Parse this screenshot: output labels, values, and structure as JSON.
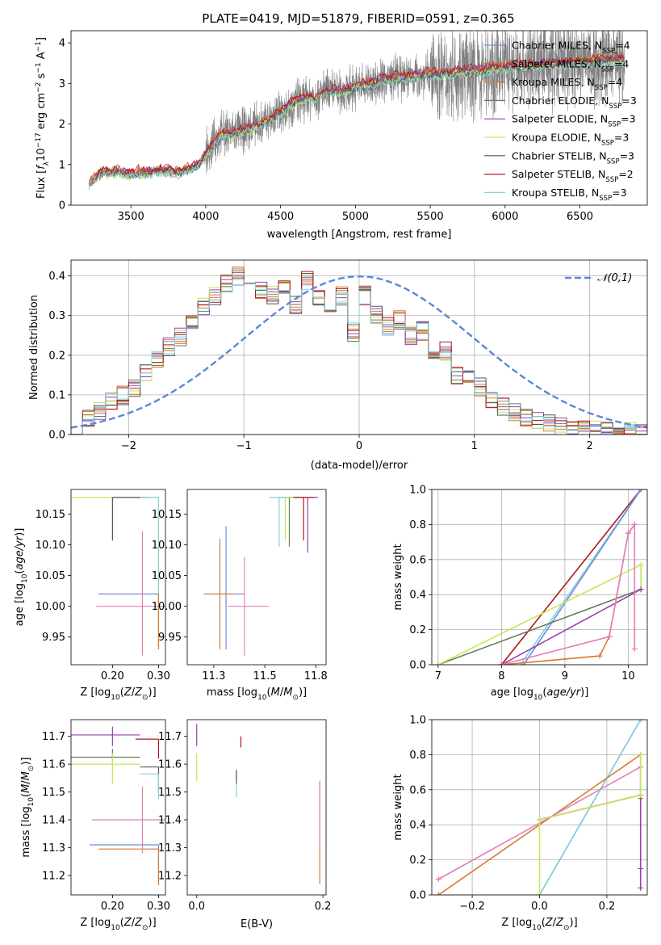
{
  "figure_title": "PLATE=0419, MJD=51879, FIBERID=0591, z=0.365",
  "colors": {
    "chabrier_miles": "#6b8fd9",
    "salpeter_miles": "#e0622f",
    "kroupa_miles": "#d97a2f",
    "chabrier_elodie": "#5f7f5f",
    "salpeter_elodie": "#9a3fb0",
    "kroupa_elodie": "#c8e655",
    "chabrier_stelib": "#555555",
    "salpeter_stelib": "#b01a1a",
    "kroupa_stelib": "#86d0d8",
    "pink": "#e27fb8",
    "data": "#808080",
    "normal": "#5b87d9"
  },
  "chart_data": [
    {
      "id": "spectrum",
      "type": "line",
      "title": "PLATE=0419, MJD=51879, FIBERID=0591, z=0.365",
      "xlabel": "wavelength [Angstrom, rest frame]",
      "ylabel": "Flux [f_λ 10^-17 erg cm^-2 s^-1 A^-1]",
      "xlim": [
        3100,
        6950
      ],
      "ylim": [
        0,
        4.3
      ],
      "xticks": [
        3500,
        4000,
        4500,
        5000,
        5500,
        6000,
        6500
      ],
      "yticks": [
        0,
        1,
        2,
        3,
        4
      ],
      "legend_position": "upper right",
      "continuum": {
        "x": [
          3220,
          3300,
          3400,
          3500,
          3600,
          3700,
          3800,
          3900,
          3950,
          4000,
          4050,
          4100,
          4200,
          4300,
          4400,
          4500,
          4600,
          4700,
          4800,
          4900,
          5000,
          5200,
          5400,
          5600,
          5800,
          6000,
          6200,
          6400,
          6600,
          6800
        ],
        "y": [
          0.55,
          0.8,
          0.82,
          0.78,
          0.8,
          0.85,
          0.8,
          0.9,
          1.0,
          1.25,
          1.5,
          1.75,
          1.8,
          1.9,
          2.05,
          2.3,
          2.55,
          2.65,
          2.78,
          2.8,
          2.9,
          3.1,
          3.2,
          3.25,
          3.3,
          3.4,
          3.45,
          3.5,
          3.55,
          3.6
        ]
      },
      "series": [
        {
          "name": "Chabrier MILES, N_SSP=4",
          "color": "#6b8fd9",
          "offset": 0.0
        },
        {
          "name": "Salpeter MILES, N_SSP=4",
          "color": "#e0622f",
          "offset": 0.05
        },
        {
          "name": "Kroupa MILES, N_SSP=4",
          "color": "#d97a2f",
          "offset": 0.03
        },
        {
          "name": "Chabrier ELODIE, N_SSP=3",
          "color": "#5f7f5f",
          "offset": -0.03
        },
        {
          "name": "Salpeter ELODIE, N_SSP=3",
          "color": "#9a3fb0",
          "offset": 0.02
        },
        {
          "name": "Kroupa ELODIE, N_SSP=3",
          "color": "#c8e655",
          "offset": -0.05
        },
        {
          "name": "Chabrier STELIB, N_SSP=3",
          "color": "#555555",
          "offset": -0.02
        },
        {
          "name": "Salpeter STELIB, N_SSP=2",
          "color": "#b01a1a",
          "offset": 0.06
        },
        {
          "name": "Kroupa STELIB, N_SSP=3",
          "color": "#86d0d8",
          "offset": -0.07
        }
      ]
    },
    {
      "id": "residuals",
      "type": "line",
      "xlabel": "(data-model)/error",
      "ylabel": "Normed distribution",
      "xlim": [
        -2.5,
        2.5
      ],
      "ylim": [
        0,
        0.44
      ],
      "xticks": [
        -2,
        -1,
        0,
        1,
        2
      ],
      "yticks": [
        0.0,
        0.1,
        0.2,
        0.3,
        0.4
      ],
      "grid": true,
      "legend": [
        "𝒩(0,1)"
      ],
      "legend_position": "upper right",
      "bin_width": 0.1,
      "bin_start": -2.5,
      "hist_base": [
        0.02,
        0.025,
        0.03,
        0.04,
        0.05,
        0.06,
        0.065,
        0.08,
        0.09,
        0.1,
        0.11,
        0.12,
        0.14,
        0.155,
        0.17,
        0.185,
        0.2,
        0.22,
        0.24,
        0.245,
        0.28,
        0.29,
        0.3,
        0.32,
        0.34,
        0.35,
        0.36,
        0.38,
        0.37,
        0.4,
        0.37,
        0.36,
        0.3,
        0.36,
        0.37,
        0.35,
        0.41,
        0.38,
        0.36,
        0.33,
        0.35,
        0.39,
        0.37,
        0.35,
        0.34,
        0.3,
        0.32,
        0.35,
        0.3,
        0.26,
        0.28,
        0.35,
        0.33,
        0.3,
        0.32,
        0.27,
        0.31,
        0.29,
        0.26,
        0.25,
        0.2,
        0.26,
        0.27,
        0.2,
        0.18,
        0.21,
        0.16,
        0.15,
        0.18,
        0.14,
        0.13,
        0.12,
        0.1,
        0.09,
        0.08,
        0.07,
        0.065,
        0.06,
        0.05,
        0.045,
        0.04,
        0.035,
        0.03,
        0.025,
        0.02,
        0.02,
        0.015,
        0.015,
        0.012,
        0.01,
        0.01,
        0.01,
        0.008,
        0.008,
        0.006,
        0.006,
        0.005,
        0.005,
        0.004,
        0.004
      ],
      "normal": {
        "mean": 0,
        "sigma": 1
      }
    },
    {
      "id": "Z_vs_age",
      "type": "scatter",
      "xlabel": "Z [log10(Z/Z⊙)]",
      "ylabel": "age [log10(age/yr)]",
      "xlim": [
        0.11,
        0.315
      ],
      "ylim": [
        9.905,
        10.19
      ],
      "xticks": [
        0.2,
        0.3
      ],
      "yticks": [
        9.95,
        10.0,
        10.05,
        10.1,
        10.15
      ],
      "points": [
        {
          "x": 0.3,
          "y": 10.177,
          "xerr": [
            0.19,
            0.0
          ],
          "yerr": [
            0.24,
            0.0
          ],
          "color": "#c8e655"
        },
        {
          "x": 0.2,
          "y": 10.177,
          "xerr": [
            0.0,
            0.08
          ],
          "yerr": [
            0.07,
            0.0
          ],
          "color": "#555555"
        },
        {
          "x": 0.3,
          "y": 10.177,
          "xerr": [
            0.04,
            0.0
          ],
          "yerr": [
            0.24,
            0.0
          ],
          "color": "#86d0d8"
        },
        {
          "x": 0.3,
          "y": 10.02,
          "xerr": [
            0.13,
            0.0
          ],
          "yerr": [
            0.09,
            0.0
          ],
          "color": "#d97a2f"
        },
        {
          "x": 0.2,
          "y": 10.02,
          "xerr": [
            0.03,
            0.1
          ],
          "yerr": [
            0.0,
            0.0
          ],
          "color": "#6b8fd9"
        },
        {
          "x": 0.265,
          "y": 10.0,
          "xerr": [
            0.1,
            0.05
          ],
          "yerr": [
            0.08,
            0.122
          ],
          "color": "#e27fb8"
        }
      ]
    },
    {
      "id": "mass_vs_age",
      "type": "scatter",
      "xlabel": "mass [log10(M/M⊙)]",
      "ylabel": "",
      "xlim": [
        11.12,
        11.8
      ],
      "ylim": [
        9.905,
        10.19
      ],
      "xticks": [
        11.25,
        11.5,
        11.75
      ],
      "yticks": [
        9.95,
        10.0,
        10.05,
        10.1,
        10.15
      ],
      "points": [
        {
          "x": 11.71,
          "y": 10.177,
          "xerr": [
            0.15,
            0.05
          ],
          "yerr": [
            0.09,
            0.0
          ],
          "color": "#9a3fb0"
        },
        {
          "x": 11.62,
          "y": 10.177,
          "xerr": [
            0.05,
            0.05
          ],
          "yerr": [
            0.08,
            0.0
          ],
          "color": "#5f7f5f"
        },
        {
          "x": 11.6,
          "y": 10.177,
          "xerr": [
            0.04,
            0.05
          ],
          "yerr": [
            0.07,
            0.0
          ],
          "color": "#c8e655"
        },
        {
          "x": 11.69,
          "y": 10.177,
          "xerr": [
            0.05,
            0.05
          ],
          "yerr": [
            0.07,
            0.0
          ],
          "color": "#b01a1a"
        },
        {
          "x": 11.57,
          "y": 10.177,
          "xerr": [
            0.05,
            0.04
          ],
          "yerr": [
            0.08,
            0.0
          ],
          "color": "#86d0d8"
        },
        {
          "x": 11.31,
          "y": 10.02,
          "xerr": [
            0.1,
            0.09
          ],
          "yerr": [
            0.09,
            0.11
          ],
          "color": "#6b8fd9"
        },
        {
          "x": 11.28,
          "y": 10.02,
          "xerr": [
            0.08,
            0.07
          ],
          "yerr": [
            0.09,
            0.09
          ],
          "color": "#d97a2f"
        },
        {
          "x": 11.4,
          "y": 10.0,
          "xerr": [
            0.08,
            0.12
          ],
          "yerr": [
            0.08,
            0.08
          ],
          "color": "#e27fb8"
        }
      ]
    },
    {
      "id": "age_mass_weight",
      "type": "line",
      "xlabel": "age [log10(age/yr)]",
      "ylabel": "mass weight",
      "xlim": [
        6.9,
        10.3
      ],
      "ylim": [
        0,
        1.0
      ],
      "xticks": [
        7,
        8,
        9,
        10
      ],
      "yticks": [
        0.0,
        0.2,
        0.4,
        0.6,
        0.8,
        1.0
      ],
      "grid": true,
      "series": [
        {
          "color": "#b01a1a",
          "x": [
            8.0,
            10.2
          ],
          "y": [
            0.0,
            1.0
          ]
        },
        {
          "color": "#86d0d8",
          "x": [
            8.3,
            10.2
          ],
          "y": [
            0.0,
            1.0
          ]
        },
        {
          "color": "#6b8fd9",
          "x": [
            8.35,
            10.2
          ],
          "y": [
            0.0,
            1.0
          ]
        },
        {
          "color": "#5f7f5f",
          "x": [
            7.0,
            10.2
          ],
          "y": [
            0.0,
            0.43
          ]
        },
        {
          "color": "#c8e655",
          "x": [
            7.0,
            10.2,
            10.2
          ],
          "y": [
            0.0,
            0.57,
            0.43
          ]
        },
        {
          "color": "#9a3fb0",
          "x": [
            8.0,
            10.2
          ],
          "y": [
            0.0,
            0.43
          ]
        },
        {
          "color": "#d97a2f",
          "x": [
            8.0,
            9.55,
            9.7,
            10.0,
            10.1
          ],
          "y": [
            0.0,
            0.05,
            0.16,
            0.75,
            0.8
          ]
        },
        {
          "color": "#e27fb8",
          "x": [
            8.0,
            9.7,
            10.0,
            10.1,
            10.1
          ],
          "y": [
            0.0,
            0.16,
            0.75,
            0.8,
            0.09
          ]
        }
      ]
    },
    {
      "id": "Z_vs_mass",
      "type": "scatter",
      "xlabel": "Z [log10(Z/Z⊙)]",
      "ylabel": "mass [log10(M/M⊙)]",
      "xlim": [
        0.11,
        0.315
      ],
      "ylim": [
        11.13,
        11.76
      ],
      "xticks": [
        0.2,
        0.3
      ],
      "yticks": [
        11.2,
        11.3,
        11.4,
        11.5,
        11.6,
        11.7
      ],
      "points": [
        {
          "x": 0.2,
          "y": 11.705,
          "xerr": [
            0.09,
            0.06
          ],
          "yerr": [
            0.04,
            0.03
          ],
          "color": "#9a3fb0"
        },
        {
          "x": 0.2,
          "y": 11.625,
          "xerr": [
            0.09,
            0.06
          ],
          "yerr": [
            0.03,
            0.03
          ],
          "color": "#5f7f5f"
        },
        {
          "x": 0.2,
          "y": 11.6,
          "xerr": [
            0.09,
            0.06
          ],
          "yerr": [
            0.07,
            0.04
          ],
          "color": "#c8e655"
        },
        {
          "x": 0.3,
          "y": 11.69,
          "xerr": [
            0.05,
            0.0
          ],
          "yerr": [
            0.07,
            0.0
          ],
          "color": "#b01a1a"
        },
        {
          "x": 0.3,
          "y": 11.59,
          "xerr": [
            0.04,
            0.0
          ],
          "yerr": [
            0.09,
            0.0
          ],
          "color": "#555555"
        },
        {
          "x": 0.3,
          "y": 11.565,
          "xerr": [
            0.04,
            0.0
          ],
          "yerr": [
            0.09,
            0.0
          ],
          "color": "#86d0d8"
        },
        {
          "x": 0.3,
          "y": 11.31,
          "xerr": [
            0.15,
            0.0
          ],
          "yerr": [
            0.12,
            0.0
          ],
          "color": "#6b8fd9"
        },
        {
          "x": 0.3,
          "y": 11.295,
          "xerr": [
            0.13,
            0.0
          ],
          "yerr": [
            0.13,
            0.0
          ],
          "color": "#d97a2f"
        },
        {
          "x": 0.265,
          "y": 11.4,
          "xerr": [
            0.11,
            0.05
          ],
          "yerr": [
            0.12,
            0.12
          ],
          "color": "#e27fb8"
        }
      ]
    },
    {
      "id": "ebv_vs_mass",
      "type": "scatter",
      "xlabel": "E(B-V)",
      "ylabel": "",
      "xlim": [
        -0.015,
        0.205
      ],
      "ylim": [
        11.13,
        11.76
      ],
      "xticks": [
        0.0,
        0.2
      ],
      "yticks": [
        11.2,
        11.3,
        11.4,
        11.5,
        11.6,
        11.7
      ],
      "points": [
        {
          "x": 0.0,
          "y": 11.705,
          "xerr": [
            0,
            0
          ],
          "yerr": [
            0.04,
            0.04
          ],
          "color": "#9a3fb0"
        },
        {
          "x": 0.0,
          "y": 11.6,
          "xerr": [
            0,
            0
          ],
          "yerr": [
            0.06,
            0.04
          ],
          "color": "#c8e655"
        },
        {
          "x": 0.07,
          "y": 11.66,
          "xerr": [
            0,
            0
          ],
          "yerr": [
            0.0,
            0.04
          ],
          "color": "#b01a1a"
        },
        {
          "x": 0.063,
          "y": 11.52,
          "xerr": [
            0,
            0
          ],
          "yerr": [
            0.04,
            0.04
          ],
          "color": "#86d0d8"
        },
        {
          "x": 0.063,
          "y": 11.55,
          "xerr": [
            0,
            0
          ],
          "yerr": [
            0.02,
            0.03
          ],
          "color": "#555555"
        },
        {
          "x": 0.195,
          "y": 11.45,
          "xerr": [
            0,
            0
          ],
          "yerr": [
            0.28,
            0.09
          ],
          "color": "#d97a2f"
        },
        {
          "x": 0.195,
          "y": 11.4,
          "xerr": [
            0,
            0
          ],
          "yerr": [
            0.1,
            0.14
          ],
          "color": "#e27fb8"
        }
      ]
    },
    {
      "id": "Z_mass_weight",
      "type": "line",
      "xlabel": "Z [log10(Z/Z⊙)]",
      "ylabel": "mass weight",
      "xlim": [
        -0.32,
        0.32
      ],
      "ylim": [
        0,
        1.0
      ],
      "xticks": [
        -0.2,
        0.0,
        0.2
      ],
      "yticks": [
        0.0,
        0.2,
        0.4,
        0.6,
        0.8,
        1.0
      ],
      "grid": true,
      "series": [
        {
          "color": "#6b8fd9",
          "x": [
            0.0,
            0.3
          ],
          "y": [
            0.0,
            1.0
          ]
        },
        {
          "color": "#86d0d8",
          "x": [
            0.0,
            0.3
          ],
          "y": [
            0.0,
            1.0
          ]
        },
        {
          "color": "#d97a2f",
          "x": [
            -0.3,
            0.3,
            0.3
          ],
          "y": [
            0.0,
            0.8,
            0.55
          ]
        },
        {
          "color": "#e27fb8",
          "x": [
            -0.3,
            0.3,
            0.3
          ],
          "y": [
            0.09,
            0.73,
            0.57
          ]
        },
        {
          "color": "#9a3fb0",
          "x": [
            0.0,
            0.3,
            0.3,
            0.3
          ],
          "y": [
            0.43,
            0.57,
            0.15,
            0.04
          ]
        },
        {
          "color": "#c8e655",
          "x": [
            0.0,
            0.0,
            0.3,
            0.3
          ],
          "y": [
            0.0,
            0.43,
            0.57,
            0.8
          ]
        }
      ]
    }
  ]
}
